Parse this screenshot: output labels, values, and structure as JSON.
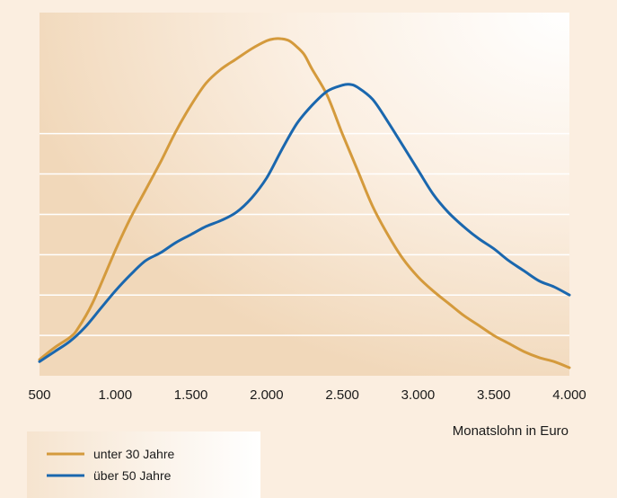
{
  "chart_data": {
    "type": "line",
    "xlabel": "Monatslohn in Euro",
    "xlim": [
      500,
      4000
    ],
    "ylim": [
      0,
      9
    ],
    "x_ticks": [
      {
        "value": 500,
        "label": "500"
      },
      {
        "value": 1000,
        "label": "1.000"
      },
      {
        "value": 1500,
        "label": "1.500"
      },
      {
        "value": 2000,
        "label": "2.000"
      },
      {
        "value": 2500,
        "label": "2.500"
      },
      {
        "value": 3000,
        "label": "3.000"
      },
      {
        "value": 3500,
        "label": "3.500"
      },
      {
        "value": 4000,
        "label": "4.000"
      }
    ],
    "y_gridlines": [
      1,
      2,
      3,
      4,
      5,
      6
    ],
    "grid": true,
    "legend_position": "bottom-left",
    "series": [
      {
        "name": "unter 30 Jahre",
        "color": "#d49a3c",
        "x": [
          500,
          600,
          700,
          750,
          850,
          1000,
          1100,
          1200,
          1300,
          1400,
          1500,
          1600,
          1700,
          1800,
          1900,
          2000,
          2050,
          2100,
          2150,
          2200,
          2250,
          2300,
          2400,
          2500,
          2600,
          2700,
          2800,
          2900,
          3000,
          3100,
          3200,
          3300,
          3400,
          3500,
          3600,
          3700,
          3800,
          3900,
          4000
        ],
        "y": [
          0.4,
          0.7,
          0.95,
          1.15,
          1.8,
          3.1,
          3.9,
          4.6,
          5.3,
          6.05,
          6.7,
          7.25,
          7.6,
          7.85,
          8.1,
          8.3,
          8.35,
          8.35,
          8.3,
          8.15,
          7.95,
          7.6,
          6.95,
          6.0,
          5.1,
          4.2,
          3.5,
          2.9,
          2.45,
          2.1,
          1.8,
          1.5,
          1.25,
          1.0,
          0.8,
          0.6,
          0.45,
          0.35,
          0.2
        ]
      },
      {
        "name": "über 50 Jahre",
        "color": "#1a67ae",
        "x": [
          500,
          600,
          700,
          800,
          900,
          1000,
          1100,
          1200,
          1300,
          1400,
          1500,
          1600,
          1700,
          1800,
          1900,
          2000,
          2100,
          2200,
          2300,
          2400,
          2500,
          2550,
          2600,
          2700,
          2800,
          2900,
          3000,
          3100,
          3200,
          3300,
          3400,
          3500,
          3600,
          3700,
          3800,
          3900,
          4000
        ],
        "y": [
          0.35,
          0.6,
          0.85,
          1.2,
          1.65,
          2.1,
          2.5,
          2.85,
          3.05,
          3.3,
          3.5,
          3.7,
          3.85,
          4.05,
          4.4,
          4.9,
          5.6,
          6.25,
          6.7,
          7.05,
          7.2,
          7.22,
          7.15,
          6.85,
          6.3,
          5.7,
          5.1,
          4.5,
          4.05,
          3.7,
          3.4,
          3.15,
          2.85,
          2.6,
          2.35,
          2.2,
          2.0
        ]
      }
    ]
  }
}
